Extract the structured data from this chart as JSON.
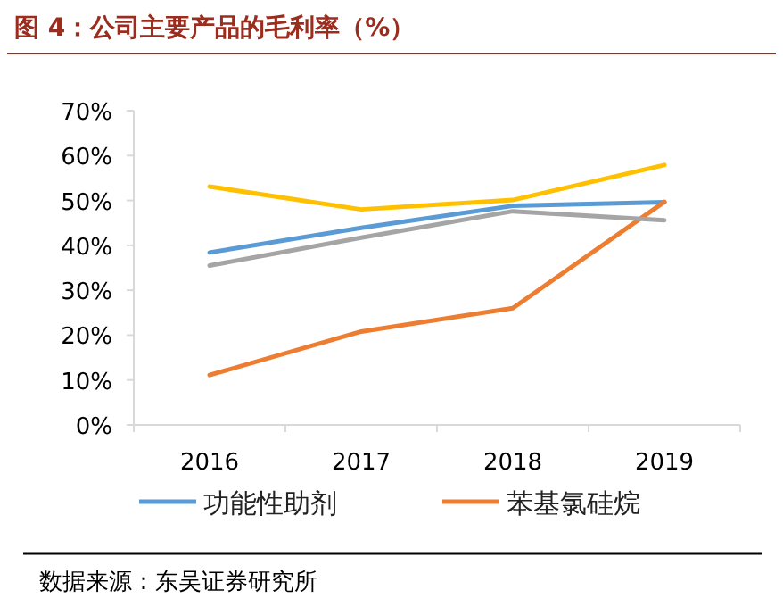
{
  "chart_data": {
    "type": "line",
    "title": "图 4：公司主要产品的毛利率（%）",
    "categories": [
      "2016",
      "2017",
      "2018",
      "2019"
    ],
    "series": [
      {
        "name": "功能性助剂",
        "color": "#5b9bd5",
        "values": [
          38.4,
          43.9,
          48.8,
          49.6
        ]
      },
      {
        "name": "苯基氯硅烷",
        "color": "#ed7d31",
        "values": [
          11.1,
          20.8,
          26.0,
          49.7
        ]
      },
      {
        "color": "#a5a5a5",
        "values": [
          35.5,
          41.7,
          47.6,
          45.6
        ]
      },
      {
        "color": "#ffc000",
        "values": [
          53.1,
          48.0,
          50.1,
          57.9
        ]
      }
    ],
    "ylim": [
      0,
      70
    ],
    "yticks": [
      {
        "value": 0,
        "label": "0%"
      },
      {
        "value": 10,
        "label": "10%"
      },
      {
        "value": 20,
        "label": "20%"
      },
      {
        "value": 30,
        "label": "30%"
      },
      {
        "value": 40,
        "label": "40%"
      },
      {
        "value": 50,
        "label": "50%"
      },
      {
        "value": 60,
        "label": "60%"
      },
      {
        "value": 70,
        "label": "70%"
      }
    ],
    "grid": false,
    "legend": "bottom",
    "annotations": [
      "数据来源：东吴证券研究所"
    ]
  }
}
